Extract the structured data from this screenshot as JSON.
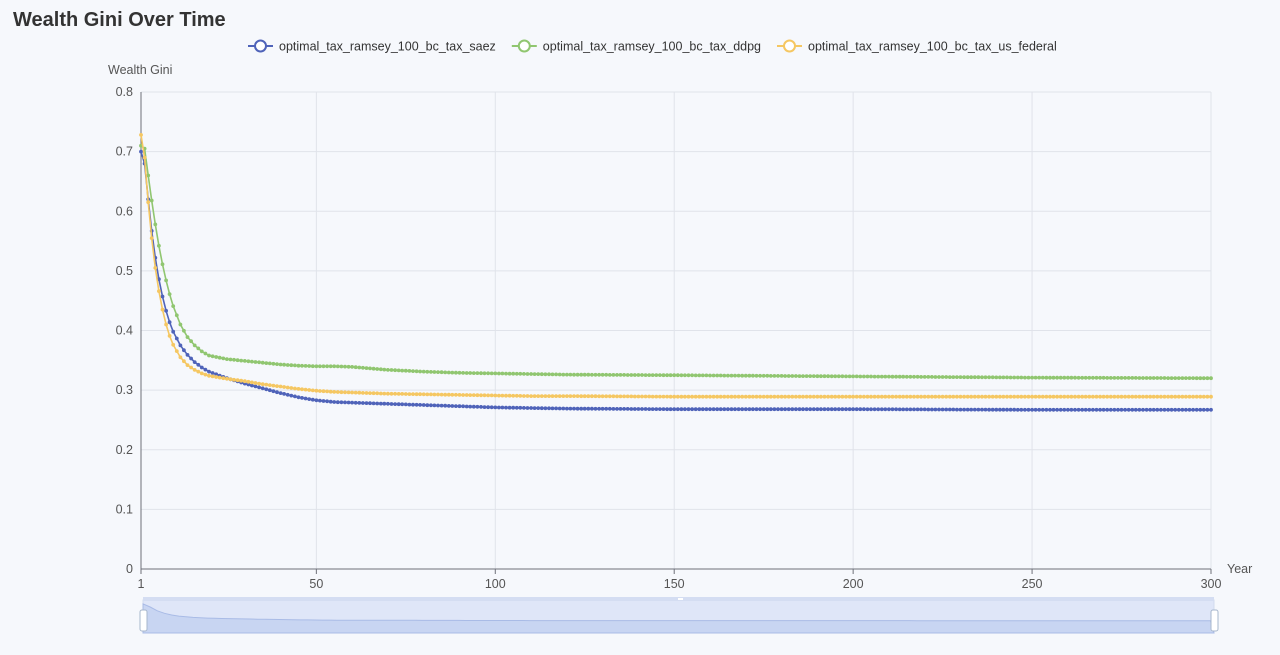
{
  "title": "Wealth Gini Over Time",
  "chart_data": {
    "type": "line",
    "title": "Wealth Gini Over Time",
    "xlabel": "Year",
    "ylabel": "Wealth Gini",
    "xlim": [
      1,
      300
    ],
    "ylim": [
      0,
      0.8
    ],
    "x_ticks": [
      1,
      50,
      100,
      150,
      200,
      250,
      300
    ],
    "y_ticks": [
      0,
      0.1,
      0.2,
      0.3,
      0.4,
      0.5,
      0.6,
      0.7,
      0.8
    ],
    "grid": true,
    "legend_position": "top-center",
    "series": [
      {
        "name": "optimal_tax_ramsey_100_bc_tax_saez",
        "color": "#4f63b9",
        "x": [
          1,
          2,
          3,
          4,
          5,
          6,
          7,
          8,
          9,
          10,
          12,
          14,
          16,
          18,
          20,
          25,
          30,
          35,
          40,
          45,
          50,
          55,
          60,
          70,
          80,
          90,
          100,
          110,
          120,
          150,
          200,
          250,
          300
        ],
        "values": [
          0.7,
          0.68,
          0.62,
          0.567,
          0.522,
          0.486,
          0.457,
          0.433,
          0.414,
          0.398,
          0.375,
          0.359,
          0.347,
          0.338,
          0.331,
          0.32,
          0.311,
          0.303,
          0.295,
          0.288,
          0.283,
          0.28,
          0.279,
          0.277,
          0.275,
          0.273,
          0.271,
          0.27,
          0.269,
          0.268,
          0.268,
          0.267,
          0.267
        ]
      },
      {
        "name": "optimal_tax_ramsey_100_bc_tax_ddpg",
        "color": "#90c670",
        "x": [
          1,
          2,
          3,
          4,
          5,
          6,
          7,
          8,
          9,
          10,
          12,
          14,
          16,
          18,
          20,
          25,
          30,
          35,
          40,
          45,
          50,
          55,
          60,
          70,
          80,
          90,
          100,
          110,
          120,
          150,
          200,
          250,
          300
        ],
        "values": [
          0.71,
          0.705,
          0.66,
          0.618,
          0.578,
          0.542,
          0.511,
          0.484,
          0.461,
          0.441,
          0.41,
          0.389,
          0.375,
          0.365,
          0.358,
          0.352,
          0.349,
          0.346,
          0.343,
          0.341,
          0.34,
          0.34,
          0.339,
          0.334,
          0.331,
          0.329,
          0.328,
          0.327,
          0.326,
          0.325,
          0.323,
          0.321,
          0.32
        ]
      },
      {
        "name": "optimal_tax_ramsey_100_bc_tax_us_federal",
        "color": "#f5c762",
        "x": [
          1,
          2,
          3,
          4,
          5,
          6,
          7,
          8,
          9,
          10,
          12,
          14,
          16,
          18,
          20,
          25,
          30,
          35,
          40,
          45,
          50,
          55,
          60,
          70,
          80,
          90,
          100,
          110,
          120,
          150,
          200,
          250,
          300
        ],
        "values": [
          0.728,
          0.69,
          0.615,
          0.555,
          0.505,
          0.466,
          0.435,
          0.41,
          0.391,
          0.376,
          0.355,
          0.342,
          0.334,
          0.328,
          0.324,
          0.319,
          0.315,
          0.31,
          0.306,
          0.302,
          0.299,
          0.297,
          0.296,
          0.294,
          0.293,
          0.292,
          0.291,
          0.29,
          0.29,
          0.289,
          0.289,
          0.289,
          0.289
        ]
      }
    ]
  }
}
